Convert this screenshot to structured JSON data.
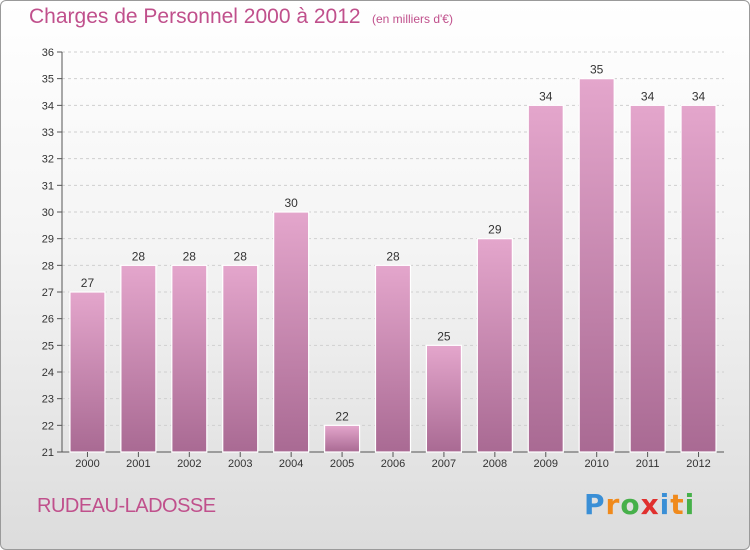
{
  "header": {
    "title": "Charges de Personnel 2000 à 2012",
    "subtitle": "(en milliers d'€)"
  },
  "footer": {
    "commune": "RUDEAU-LADOSSE",
    "logo_text": "Proxiti",
    "logo_colors": [
      "#3a8fd6",
      "#f08a1c",
      "#46b04a",
      "#e0302e",
      "#3a8fd6",
      "#f08a1c",
      "#46b04a"
    ]
  },
  "colors": {
    "bar_top": "#e4a6cc",
    "bar_bottom": "#a96a93",
    "text_accent": "#c0508c"
  },
  "chart_data": {
    "type": "bar",
    "categories": [
      "2000",
      "2001",
      "2002",
      "2003",
      "2004",
      "2005",
      "2006",
      "2007",
      "2008",
      "2009",
      "2010",
      "2011",
      "2012"
    ],
    "values": [
      27,
      28,
      28,
      28,
      30,
      22,
      28,
      25,
      29,
      34,
      35,
      34,
      34
    ],
    "title": "Charges de Personnel 2000 à 2012",
    "subtitle": "(en milliers d'€)",
    "xlabel": "",
    "ylabel": "",
    "ylim": [
      21,
      36
    ],
    "yticks": [
      21,
      22,
      23,
      24,
      25,
      26,
      27,
      28,
      29,
      30,
      31,
      32,
      33,
      34,
      35,
      36
    ],
    "grid": true,
    "data_labels": true,
    "legend": "none"
  }
}
